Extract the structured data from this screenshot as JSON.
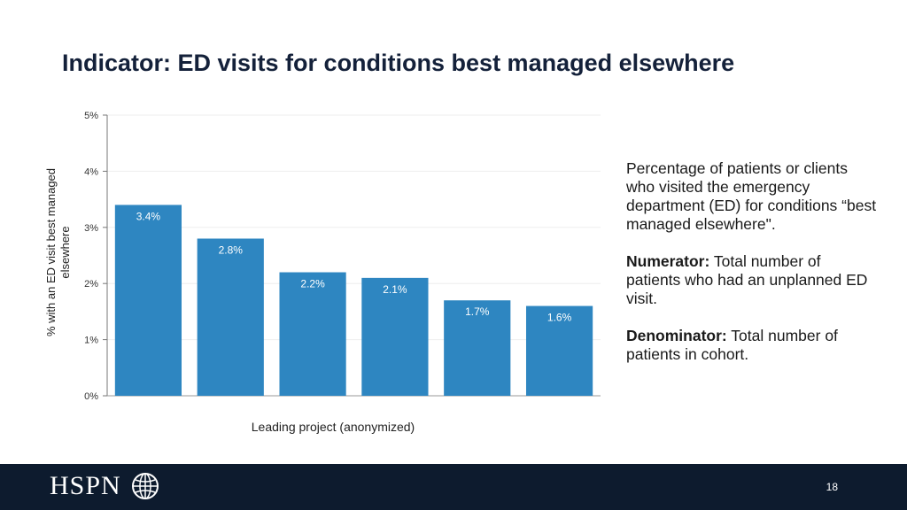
{
  "slide": {
    "title": "Indicator: ED visits for conditions best managed elsewhere",
    "page_number": "18",
    "logo_text": "HSPN"
  },
  "description": {
    "intro": "Percentage of patients or clients who visited the emergency department (ED) for conditions “best managed elsewhere\".",
    "numerator_label": "Numerator:",
    "numerator_text": "Total number of patients who had an unplanned ED visit.",
    "denominator_label": "Denominator:",
    "denominator_text": "Total number of patients in cohort."
  },
  "colors": {
    "bar": "#2e86c1",
    "footer": "#0d1b2e",
    "title": "#14213a"
  },
  "chart_data": {
    "type": "bar",
    "categories": [
      "",
      "",
      "",
      "",
      "",
      ""
    ],
    "values": [
      3.4,
      2.8,
      2.2,
      2.1,
      1.7,
      1.6
    ],
    "data_labels": [
      "3.4%",
      "2.8%",
      "2.2%",
      "2.1%",
      "1.7%",
      "1.6%"
    ],
    "xlabel": "Leading project (anonymized)",
    "ylabel": "% with an ED visit best managed elsewhere",
    "ylim": [
      0,
      5
    ],
    "yticks": [
      0,
      1,
      2,
      3,
      4,
      5
    ],
    "ytick_labels": [
      "0%",
      "1%",
      "2%",
      "3%",
      "4%",
      "5%"
    ],
    "grid": true,
    "legend": "none"
  }
}
